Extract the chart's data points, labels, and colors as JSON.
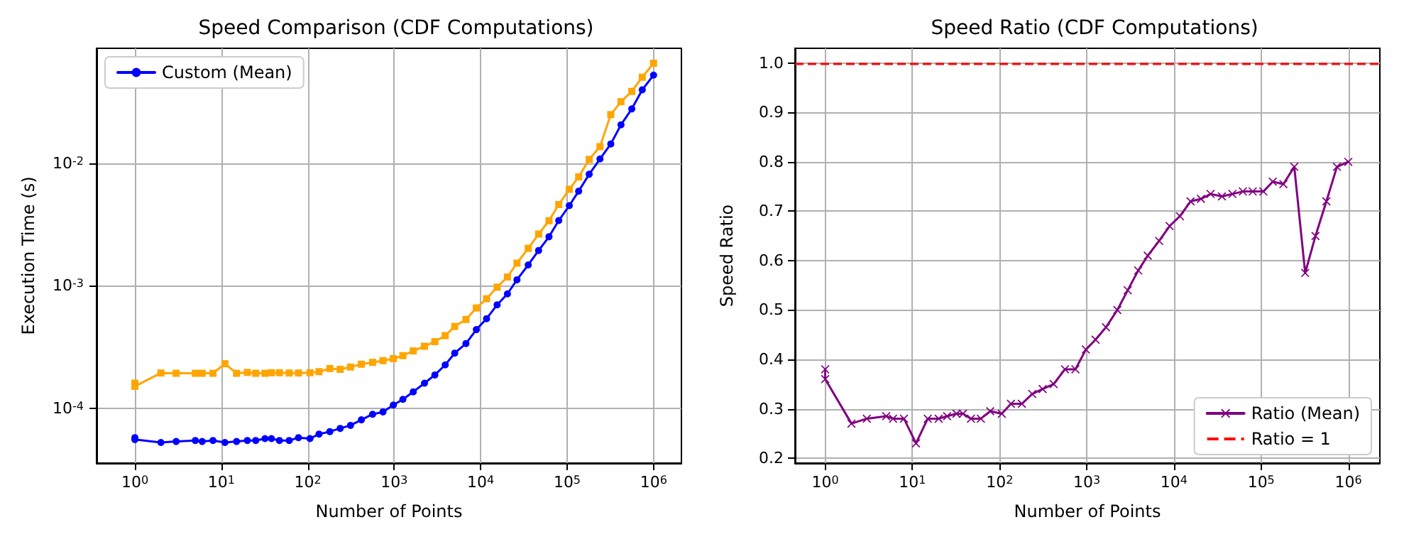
{
  "chart_data": [
    {
      "type": "line",
      "title": "Speed Comparison (CDF Computations)",
      "xlabel": "Number of Points",
      "ylabel": "Execution Time (s)",
      "log": "xy",
      "grid": true,
      "legend": "top left",
      "xlim": [
        0.36,
        2100000
      ],
      "ylim": [
        3.6e-05,
        0.086
      ],
      "xticks": [
        {
          "value": 1,
          "label": "10$^{0}$"
        },
        {
          "value": 10,
          "label": "10$^{1}$"
        },
        {
          "value": 100,
          "label": "10$^{2}$"
        },
        {
          "value": 1000,
          "label": "10$^{3}$"
        },
        {
          "value": 10000,
          "label": "10$^{4}$"
        },
        {
          "value": 100000,
          "label": "10$^{5}$"
        },
        {
          "value": 1000000,
          "label": "10$^{6}$"
        }
      ],
      "yticks": [
        {
          "value": 0.0001,
          "label": "10$^{-4}$"
        },
        {
          "value": 0.001,
          "label": "10$^{-3}$"
        },
        {
          "value": 0.01,
          "label": "10$^{-2}$"
        }
      ],
      "x": [
        1,
        1,
        2,
        3,
        5,
        6,
        8,
        11,
        15,
        20,
        25,
        32,
        38,
        47,
        61,
        78,
        106,
        135,
        180,
        237,
        312,
        417,
        562,
        741,
        977,
        1260,
        1660,
        2240,
        2950,
        3890,
        5010,
        6760,
        8910,
        11700,
        15500,
        20400,
        26300,
        35500,
        46800,
        61700,
        80000,
        106000,
        136000,
        180000,
        240000,
        320000,
        420000,
        560000,
        740000,
        1000000
      ],
      "series": [
        {
          "name": "Custom (Mean)",
          "color": "#0000ff",
          "marker": "circle",
          "values": [
            5.8e-05,
            5.6e-05,
            5.3e-05,
            5.4e-05,
            5.5e-05,
            5.4e-05,
            5.5e-05,
            5.3e-05,
            5.4e-05,
            5.5e-05,
            5.5e-05,
            5.7e-05,
            5.7e-05,
            5.5e-05,
            5.5e-05,
            5.8e-05,
            5.7e-05,
            6.2e-05,
            6.5e-05,
            6.9e-05,
            7.3e-05,
            8.1e-05,
            9e-05,
            9.4e-05,
            0.000107,
            0.000119,
            0.000137,
            0.000161,
            0.000188,
            0.000227,
            0.000283,
            0.000339,
            0.00044,
            0.00054,
            0.0007,
            0.00086,
            0.00112,
            0.00148,
            0.00194,
            0.00251,
            0.0034,
            0.0045,
            0.0059,
            0.0081,
            0.0108,
            0.0143,
            0.0205,
            0.0276,
            0.0395,
            0.052
          ]
        },
        {
          "color": "#ffa500",
          "marker": "square",
          "values": [
            0.000161,
            0.000152,
            0.000195,
            0.000194,
            0.000194,
            0.000194,
            0.000194,
            0.000232,
            0.000194,
            0.000197,
            0.000194,
            0.000194,
            0.000196,
            0.000196,
            0.000195,
            0.000195,
            0.000196,
            0.0002,
            0.000212,
            0.000209,
            0.000218,
            0.00023,
            0.000238,
            0.000246,
            0.000255,
            0.00027,
            0.000295,
            0.000322,
            0.000351,
            0.000393,
            0.000467,
            0.000532,
            0.00066,
            0.000785,
            0.000975,
            0.00118,
            0.00153,
            0.00202,
            0.00264,
            0.00339,
            0.00459,
            0.00611,
            0.00771,
            0.0107,
            0.0136,
            0.0248,
            0.0316,
            0.0383,
            0.05,
            0.065
          ]
        }
      ]
    },
    {
      "type": "line",
      "title": "Speed Ratio (CDF Computations)",
      "xlabel": "Number of Points",
      "ylabel": "Speed Ratio",
      "log": "x",
      "grid": true,
      "legend": "bottom right",
      "xlim": [
        0.45,
        2300000
      ],
      "ylim": [
        0.19,
        1.03
      ],
      "xticks": [
        {
          "value": 1,
          "label": "10$^{0}$"
        },
        {
          "value": 10,
          "label": "10$^{1}$"
        },
        {
          "value": 100,
          "label": "10$^{2}$"
        },
        {
          "value": 1000,
          "label": "10$^{3}$"
        },
        {
          "value": 10000,
          "label": "10$^{4}$"
        },
        {
          "value": 100000,
          "label": "10$^{5}$"
        },
        {
          "value": 1000000,
          "label": "10$^{6}$"
        }
      ],
      "yticks": [
        {
          "value": 0.2,
          "label": "0.2"
        },
        {
          "value": 0.3,
          "label": "0.3"
        },
        {
          "value": 0.4,
          "label": "0.4"
        },
        {
          "value": 0.5,
          "label": "0.5"
        },
        {
          "value": 0.6,
          "label": "0.6"
        },
        {
          "value": 0.7,
          "label": "0.7"
        },
        {
          "value": 0.8,
          "label": "0.8"
        },
        {
          "value": 0.9,
          "label": "0.9"
        },
        {
          "value": 1.0,
          "label": "1.0"
        }
      ],
      "x": [
        1,
        1,
        2,
        3,
        5,
        6,
        8,
        11,
        15,
        20,
        25,
        32,
        38,
        47,
        61,
        78,
        106,
        135,
        180,
        237,
        312,
        417,
        562,
        741,
        977,
        1260,
        1660,
        2240,
        2950,
        3890,
        5010,
        6760,
        8910,
        11700,
        15500,
        20400,
        26300,
        35500,
        46800,
        61700,
        80000,
        106000,
        136000,
        180000,
        240000,
        320000,
        420000,
        560000,
        740000,
        1000000
      ],
      "series": [
        {
          "name": "Ratio (Mean)",
          "color": "#800080",
          "marker": "cross",
          "values": [
            0.38,
            0.36,
            0.27,
            0.28,
            0.285,
            0.28,
            0.28,
            0.23,
            0.28,
            0.28,
            0.285,
            0.29,
            0.29,
            0.28,
            0.28,
            0.295,
            0.29,
            0.31,
            0.31,
            0.33,
            0.34,
            0.35,
            0.38,
            0.38,
            0.42,
            0.44,
            0.465,
            0.5,
            0.54,
            0.58,
            0.61,
            0.64,
            0.67,
            0.69,
            0.72,
            0.725,
            0.735,
            0.73,
            0.735,
            0.74,
            0.74,
            0.74,
            0.76,
            0.755,
            0.79,
            0.575,
            0.65,
            0.72,
            0.79,
            0.8
          ]
        }
      ],
      "ref_lines": [
        {
          "axis": "y",
          "value": 1,
          "label": "Ratio = 1",
          "color": "#ff0000",
          "line_style": "dashed"
        }
      ]
    }
  ]
}
